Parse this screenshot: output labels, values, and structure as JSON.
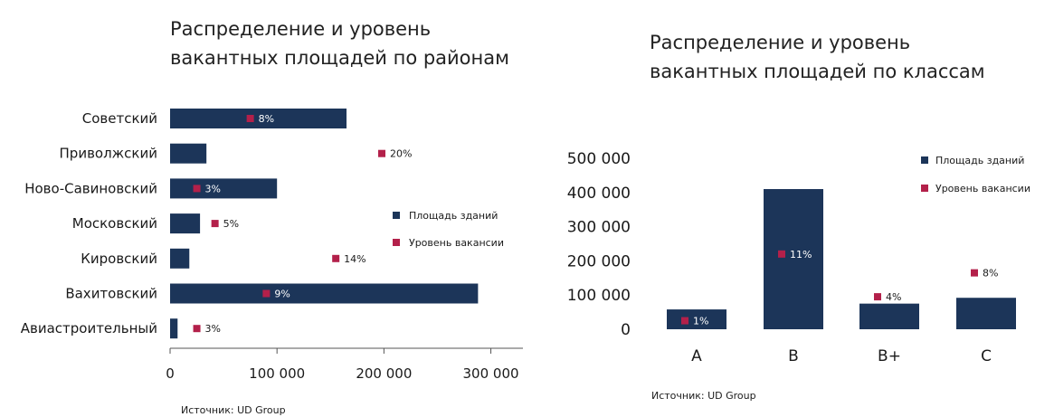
{
  "colors": {
    "bar": "#1c3559",
    "marker": "#b3204a",
    "axis": "#555555"
  },
  "chart_data": [
    {
      "type": "bar",
      "orientation": "horizontal",
      "title_lines": [
        "Распределение и уровень",
        "вакантных площадей по районам"
      ],
      "categories": [
        "Советский",
        "Приволжский",
        "Ново-Савиновский",
        "Московский",
        "Кировский",
        "Вахитовский",
        "Авиастроительный"
      ],
      "series": [
        {
          "name": "Площадь зданий",
          "kind": "bar",
          "values": [
            165000,
            34000,
            100000,
            28000,
            18000,
            288000,
            7000
          ]
        },
        {
          "name": "Уровень вакансии",
          "kind": "marker",
          "values": [
            8,
            20,
            3,
            5,
            14,
            9,
            3
          ],
          "marker_position": [
            75000,
            198000,
            25000,
            42000,
            155000,
            90000,
            25000
          ]
        }
      ],
      "vacancy_labels": [
        "8%",
        "20%",
        "3%",
        "5%",
        "14%",
        "9%",
        "3%"
      ],
      "xticks": [
        "0",
        "100 000",
        "200 000",
        "300 000"
      ],
      "xtick_values": [
        0,
        100000,
        200000,
        300000
      ],
      "xlim": [
        0,
        330000
      ],
      "legend": [
        "Площадь зданий",
        "Уровень вакансии"
      ],
      "legend_placement": "center-right",
      "source": "Источник: UD Group"
    },
    {
      "type": "bar",
      "orientation": "vertical",
      "title_lines": [
        "Распределение и уровень",
        "вакантных площадей по классам"
      ],
      "categories": [
        "A",
        "B",
        "B+",
        "C"
      ],
      "series": [
        {
          "name": "Площадь зданий",
          "kind": "bar",
          "values": [
            58000,
            410000,
            75000,
            92000
          ]
        },
        {
          "name": "Уровень вакансии",
          "kind": "marker",
          "values": [
            1,
            11,
            4,
            8
          ],
          "marker_position": [
            25000,
            220000,
            95000,
            165000
          ]
        }
      ],
      "vacancy_labels": [
        "1%",
        "11%",
        "4%",
        "8%"
      ],
      "yticks": [
        "500 000",
        "400 000",
        "300 000",
        "200 000",
        "100 000",
        "0"
      ],
      "ytick_values": [
        500000,
        400000,
        300000,
        200000,
        100000,
        0
      ],
      "ylim": [
        0,
        500000
      ],
      "legend": [
        "Площадь зданий",
        "Уровень вакансии"
      ],
      "legend_placement": "top-right",
      "source": "Источник: UD Group"
    }
  ]
}
